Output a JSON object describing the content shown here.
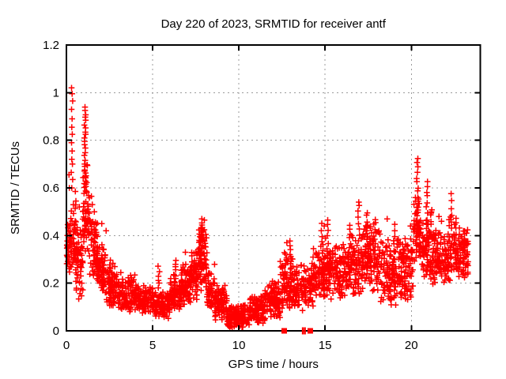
{
  "chart_data": {
    "type": "scatter",
    "title": "Day 220 of 2023, SRMTID for receiver antf",
    "xlabel": "GPS time / hours",
    "ylabel": "SRMTID / TECUs",
    "xlim": [
      0,
      24
    ],
    "ylim": [
      0,
      1.2
    ],
    "xticks": [
      0,
      5,
      10,
      15,
      20
    ],
    "xtick_labels": [
      "0",
      "5",
      "10",
      "15",
      "20"
    ],
    "yticks": [
      0,
      0.2,
      0.4,
      0.6,
      0.8,
      1.0,
      1.2
    ],
    "ytick_labels": [
      "0",
      "0.2",
      "0.4",
      "0.6",
      "0.8",
      "1",
      "1.2"
    ],
    "grid": true,
    "legend": "none",
    "marker": "plus",
    "marker_color": "#ff0000",
    "grid_color": "#9b9b9b",
    "frame_color": "#000000",
    "seed": 20230220,
    "band_segments": [
      [
        0.02,
        0.25,
        40,
        0.22,
        0.5
      ],
      [
        0.25,
        0.55,
        42,
        0.22,
        0.56
      ],
      [
        0.55,
        0.95,
        55,
        0.13,
        0.48
      ],
      [
        0.95,
        1.35,
        60,
        0.28,
        0.75
      ],
      [
        1.35,
        1.8,
        60,
        0.2,
        0.52
      ],
      [
        1.8,
        2.3,
        65,
        0.12,
        0.4
      ],
      [
        2.3,
        3.0,
        80,
        0.1,
        0.3
      ],
      [
        3.0,
        4.0,
        110,
        0.07,
        0.25
      ],
      [
        4.0,
        5.0,
        110,
        0.07,
        0.2
      ],
      [
        5.0,
        6.0,
        110,
        0.05,
        0.18
      ],
      [
        6.0,
        6.6,
        70,
        0.08,
        0.24
      ],
      [
        6.6,
        7.2,
        75,
        0.1,
        0.3
      ],
      [
        7.2,
        7.6,
        55,
        0.12,
        0.38
      ],
      [
        7.6,
        8.15,
        70,
        0.15,
        0.44
      ],
      [
        8.15,
        8.6,
        55,
        0.08,
        0.28
      ],
      [
        8.6,
        9.3,
        85,
        0.04,
        0.2
      ],
      [
        9.3,
        10.6,
        150,
        0.01,
        0.12
      ],
      [
        10.6,
        11.5,
        100,
        0.03,
        0.17
      ],
      [
        11.5,
        12.4,
        100,
        0.05,
        0.22
      ],
      [
        12.4,
        13.2,
        90,
        0.08,
        0.33
      ],
      [
        13.2,
        14.3,
        110,
        0.08,
        0.3
      ],
      [
        14.3,
        15.0,
        80,
        0.12,
        0.42
      ],
      [
        15.0,
        16.0,
        110,
        0.12,
        0.4
      ],
      [
        16.0,
        17.0,
        110,
        0.12,
        0.42
      ],
      [
        17.0,
        18.2,
        130,
        0.15,
        0.48
      ],
      [
        18.2,
        19.3,
        120,
        0.1,
        0.42
      ],
      [
        19.3,
        20.1,
        90,
        0.12,
        0.42
      ],
      [
        20.1,
        20.6,
        55,
        0.25,
        0.6
      ],
      [
        20.6,
        21.2,
        70,
        0.2,
        0.55
      ],
      [
        21.2,
        22.1,
        100,
        0.18,
        0.45
      ],
      [
        22.1,
        22.6,
        60,
        0.2,
        0.5
      ],
      [
        22.6,
        23.3,
        80,
        0.2,
        0.45
      ]
    ],
    "spike_columns": [
      [
        1.08,
        24,
        0.6,
        0.94
      ],
      [
        5.35,
        6,
        0.18,
        0.27
      ],
      [
        6.35,
        6,
        0.22,
        0.3
      ],
      [
        7.7,
        8,
        0.3,
        0.42
      ],
      [
        7.85,
        13,
        0.36,
        0.465
      ],
      [
        13.0,
        8,
        0.26,
        0.375
      ],
      [
        14.8,
        8,
        0.28,
        0.45
      ],
      [
        15.15,
        7,
        0.32,
        0.47
      ],
      [
        16.45,
        6,
        0.35,
        0.44
      ],
      [
        16.95,
        8,
        0.38,
        0.545
      ],
      [
        17.45,
        8,
        0.36,
        0.5
      ],
      [
        17.9,
        7,
        0.35,
        0.47
      ],
      [
        19.0,
        6,
        0.3,
        0.45
      ],
      [
        20.35,
        16,
        0.42,
        0.725
      ],
      [
        20.9,
        12,
        0.38,
        0.63
      ],
      [
        22.35,
        7,
        0.4,
        0.57
      ],
      [
        23.05,
        6,
        0.28,
        0.42
      ]
    ],
    "outlier_points": [
      [
        0.3,
        1.02
      ],
      [
        0.33,
        0.995
      ],
      [
        0.36,
        0.965
      ],
      [
        0.3,
        0.93
      ],
      [
        0.33,
        0.89
      ],
      [
        0.31,
        0.855
      ],
      [
        0.34,
        0.825
      ],
      [
        0.3,
        0.79
      ],
      [
        0.33,
        0.755
      ],
      [
        0.31,
        0.72
      ],
      [
        0.35,
        0.7
      ],
      [
        0.28,
        0.665
      ],
      [
        0.36,
        0.635
      ],
      [
        0.31,
        0.6
      ],
      [
        0.15,
        0.655
      ],
      [
        0.17,
        0.6
      ],
      [
        0.52,
        0.585
      ],
      [
        0.55,
        0.545
      ],
      [
        0.75,
        0.52
      ],
      [
        1.45,
        0.565
      ],
      [
        1.5,
        0.53
      ],
      [
        1.62,
        0.5
      ],
      [
        2.05,
        0.45
      ],
      [
        2.3,
        0.42
      ],
      [
        6.9,
        0.33
      ],
      [
        8.0,
        0.465
      ],
      [
        12.78,
        0.37
      ],
      [
        14.95,
        0.44
      ],
      [
        18.6,
        0.47
      ],
      [
        19.95,
        0.44
      ],
      [
        21.6,
        0.48
      ],
      [
        21.75,
        0.46
      ],
      [
        23.2,
        0.41
      ]
    ],
    "zero_markers": {
      "squares_h": [
        12.63,
        14.14
      ],
      "bars_h": [
        13.7,
        13.82
      ]
    }
  }
}
